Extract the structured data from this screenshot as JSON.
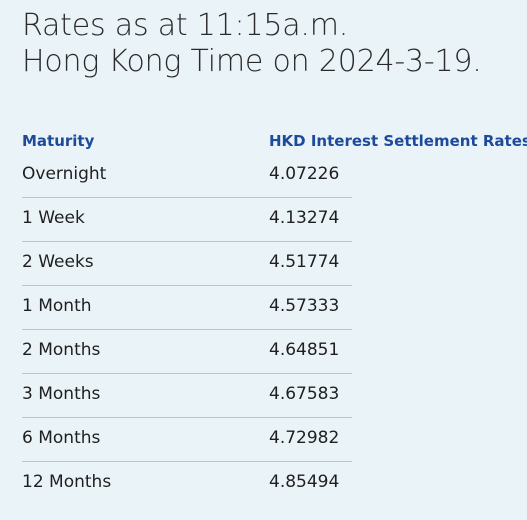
{
  "heading": {
    "line1": "Rates as at 11:15a.m.",
    "line2": "Hong Kong Time on 2024-3-19."
  },
  "table": {
    "headers": {
      "maturity": "Maturity",
      "rate": "HKD Interest Settlement Rates"
    },
    "rows": [
      {
        "maturity": "Overnight",
        "rate": "4.07226"
      },
      {
        "maturity": "1 Week",
        "rate": "4.13274"
      },
      {
        "maturity": "2 Weeks",
        "rate": "4.51774"
      },
      {
        "maturity": "1 Month",
        "rate": "4.57333"
      },
      {
        "maturity": "2 Months",
        "rate": "4.64851"
      },
      {
        "maturity": "3 Months",
        "rate": "4.67583"
      },
      {
        "maturity": "6 Months",
        "rate": "4.72982"
      },
      {
        "maturity": "12 Months",
        "rate": "4.85494"
      }
    ]
  },
  "colors": {
    "background": "#eaf3f8",
    "header_text": "#1e4a9b",
    "divider": "#a9c9dd"
  }
}
